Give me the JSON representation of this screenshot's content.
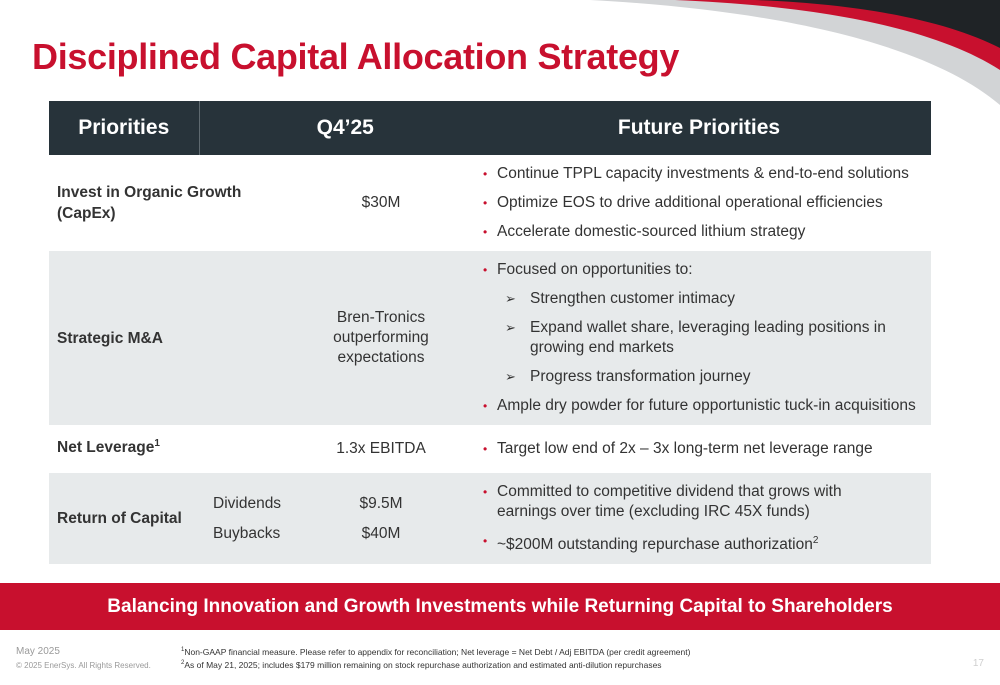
{
  "title": "Disciplined Capital Allocation Strategy",
  "colors": {
    "accent": "#c8102e",
    "header_bg": "#27333a",
    "row_alt": "#e7eaeb",
    "corner_dark": "#1f2326"
  },
  "table": {
    "headers": {
      "priorities": "Priorities",
      "quarter": "Q4’25",
      "future": "Future Priorities"
    },
    "organic": {
      "label_line1": "Invest in Organic Growth",
      "label_line2": "(CapEx)",
      "value": "$30M",
      "bullets": [
        "Continue TPPL capacity investments & end-to-end solutions",
        "Optimize EOS to drive additional operational efficiencies",
        "Accelerate domestic-sourced lithium strategy"
      ]
    },
    "mna": {
      "label": "Strategic M&A",
      "value_line1": "Bren-Tronics",
      "value_line2": "outperforming",
      "value_line3": "expectations",
      "intro": "Focused on opportunities to:",
      "subs": [
        "Strengthen customer intimacy",
        "Expand wallet share, leveraging leading positions in growing end markets",
        "Progress transformation journey"
      ],
      "closing": "Ample dry powder for future opportunistic tuck-in acquisitions"
    },
    "leverage": {
      "label": "Net Leverage",
      "label_sup": "1",
      "value": "1.3x EBITDA",
      "bullet": "Target low end of 2x – 3x long-term net leverage range"
    },
    "return": {
      "label": "Return of Capital",
      "sub1": "Dividends",
      "sub2": "Buybacks",
      "value1": "$9.5M",
      "value2": "$40M",
      "bullet1_line1": "Committed to competitive dividend that grows with",
      "bullet1_line2": "earnings over time (excluding IRC 45X funds)",
      "bullet2": "~$200M outstanding repurchase authorization",
      "bullet2_sup": "2"
    }
  },
  "banner": "Balancing Innovation and Growth Investments while Returning Capital to Shareholders",
  "footer": {
    "date": "May 2025",
    "copyright": "© 2025 EnerSys. All Rights Reserved.",
    "note1_sup": "1",
    "note1": "Non-GAAP financial measure. Please refer to appendix for reconciliation; Net leverage = Net Debt / Adj EBITDA (per credit agreement)",
    "note2_sup": "2",
    "note2": "As of May 21, 2025; includes $179 million remaining on stock repurchase authorization and estimated anti-dilution repurchases",
    "page_number": "17"
  }
}
